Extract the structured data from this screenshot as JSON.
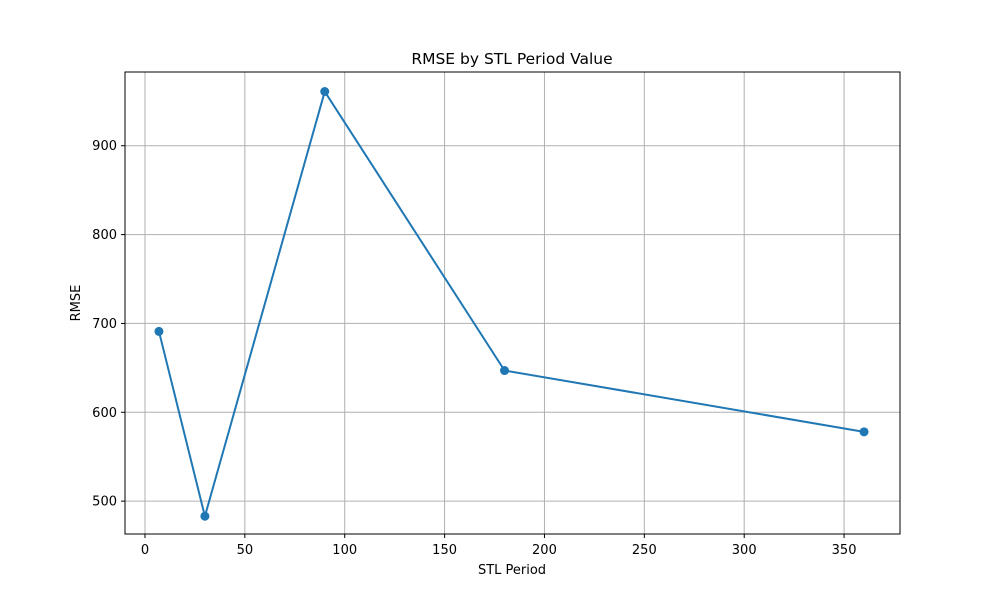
{
  "chart_data": {
    "type": "line",
    "title": "RMSE by STL Period Value",
    "xlabel": "STL Period",
    "ylabel": "RMSE",
    "xlim": [
      -10,
      378
    ],
    "ylim": [
      463,
      983
    ],
    "xticks": [
      0,
      50,
      100,
      150,
      200,
      250,
      300,
      350
    ],
    "yticks": [
      500,
      600,
      700,
      800,
      900
    ],
    "grid": true,
    "series": [
      {
        "x": [
          7,
          30,
          90,
          180,
          360
        ],
        "values": [
          691,
          483,
          961,
          647,
          578
        ],
        "color": "#1f77b4",
        "marker": "circle"
      }
    ]
  }
}
